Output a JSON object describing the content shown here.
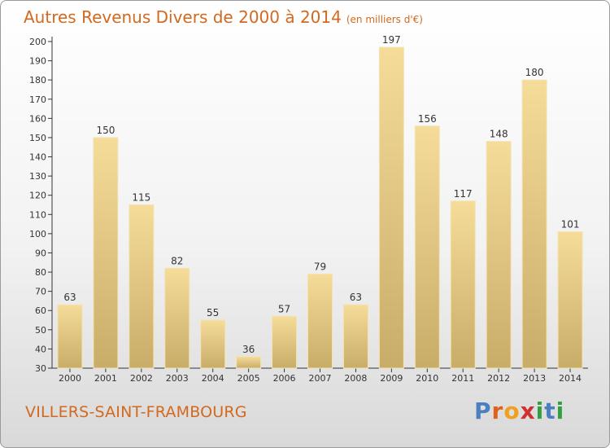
{
  "header": {
    "title": "Autres Revenus Divers de 2000 à 2014",
    "unit": "(en milliers d'€)"
  },
  "footer": {
    "commune": "VILLERS-SAINT-FRAMBOURG",
    "logo_letters": [
      "P",
      "r",
      "o",
      "x",
      "i",
      "t",
      "i"
    ]
  },
  "colors": {
    "title": "#d2691e",
    "bar_light": "#f5dc98",
    "bar_dark": "#c8ad69",
    "logo": [
      "#4a7fc0",
      "#e0601e",
      "#f0a020",
      "#d03030",
      "#30a040",
      "#4a7fc0",
      "#30a040"
    ]
  },
  "chart_data": {
    "type": "bar",
    "title": "Autres Revenus Divers de 2000 à 2014",
    "categories": [
      "2000",
      "2001",
      "2002",
      "2003",
      "2004",
      "2005",
      "2006",
      "2007",
      "2008",
      "2009",
      "2010",
      "2011",
      "2012",
      "2013",
      "2014"
    ],
    "values": [
      63,
      150,
      115,
      82,
      55,
      36,
      57,
      79,
      63,
      197,
      156,
      117,
      148,
      180,
      101
    ],
    "ylim": [
      30,
      200
    ],
    "yticks": [
      30,
      40,
      50,
      60,
      70,
      80,
      90,
      100,
      110,
      120,
      130,
      140,
      150,
      160,
      170,
      180,
      190,
      200
    ],
    "grid": false,
    "legend": "none"
  }
}
